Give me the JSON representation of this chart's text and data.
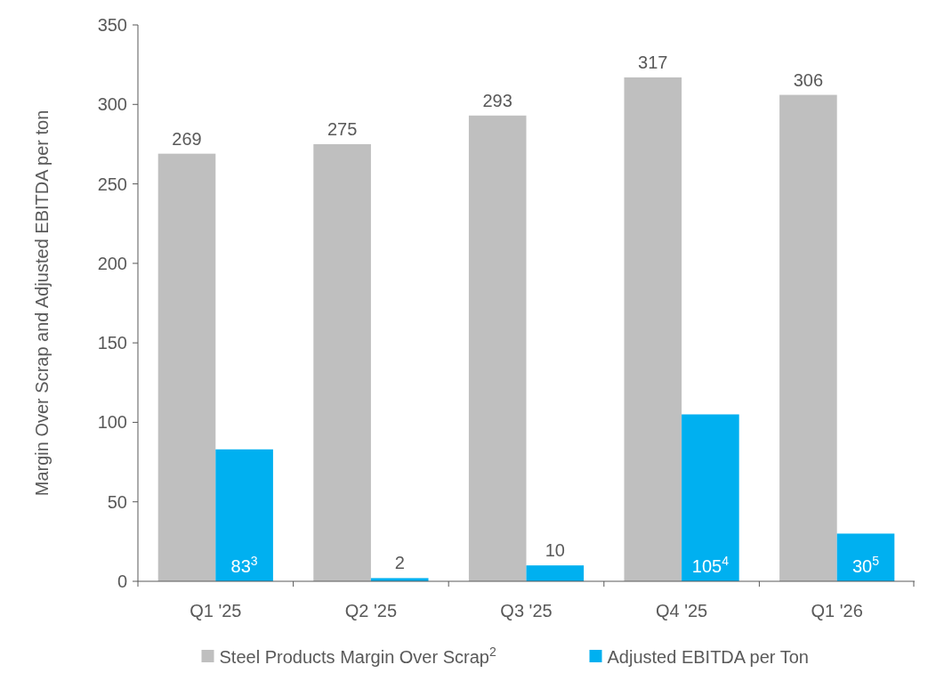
{
  "chart_data": {
    "type": "bar",
    "ylabel": "Margin Over Scrap and Adjusted EBITDA per ton",
    "categories": [
      "Q1 '25",
      "Q2 '25",
      "Q3 '25",
      "Q4 '25",
      "Q1 '26"
    ],
    "series": [
      {
        "name": "Steel Products Margin Over Scrap$^{2}$",
        "color": "#bfbfbf",
        "values": [
          269,
          275,
          293,
          317,
          306
        ],
        "value_labels": [
          "269",
          "275",
          "293",
          "317",
          "306"
        ]
      },
      {
        "name": "Adjusted EBITDA per Ton",
        "color": "#00b0f0",
        "values": [
          83,
          2,
          10,
          105,
          30
        ],
        "value_labels": [
          "83$^{3}$",
          "2",
          "10",
          "105$^{4}$",
          "30$^{5}$"
        ]
      }
    ],
    "ylim": [
      0,
      350
    ],
    "yticks": [
      0,
      50,
      100,
      150,
      200,
      250,
      300,
      350
    ],
    "grid": false,
    "legend": "bottom"
  }
}
